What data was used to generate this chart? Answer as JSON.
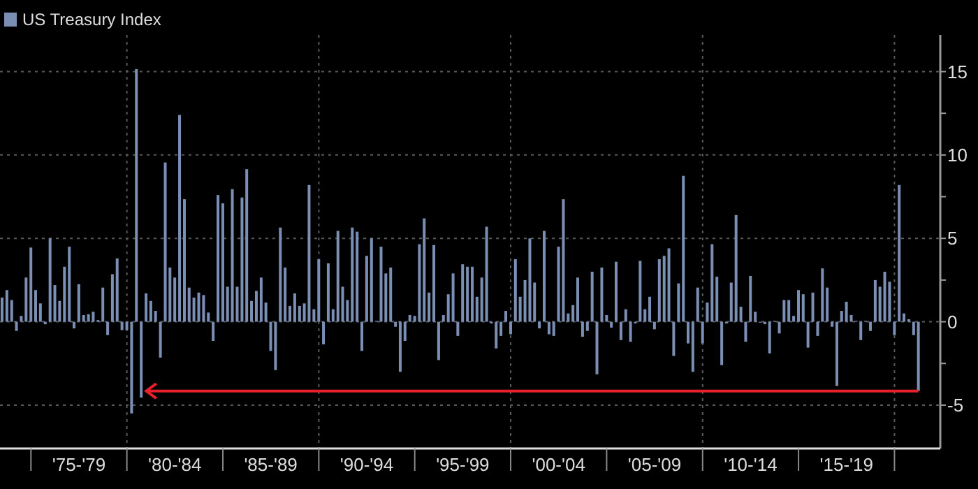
{
  "chart_data": {
    "type": "bar",
    "x": [
      "1973-06-30",
      "1973-09-30",
      "1973-12-31",
      "1974-03-31",
      "1974-06-30",
      "1974-09-30",
      "1974-12-31",
      "1975-03-31",
      "1975-06-30",
      "1975-09-30",
      "1975-12-31",
      "1976-03-31",
      "1976-06-30",
      "1976-09-30",
      "1976-12-31",
      "1977-03-31",
      "1977-06-30",
      "1977-09-30",
      "1977-12-31",
      "1978-03-31",
      "1978-06-30",
      "1978-09-30",
      "1978-12-31",
      "1979-03-31",
      "1979-06-30",
      "1979-09-30",
      "1979-12-31",
      "1980-03-31",
      "1980-06-30",
      "1980-09-30",
      "1980-12-31",
      "1981-03-31",
      "1981-06-30",
      "1981-09-30",
      "1981-12-31",
      "1982-03-31",
      "1982-06-30",
      "1982-09-30",
      "1982-12-31",
      "1983-03-31",
      "1983-06-30",
      "1983-09-30",
      "1983-12-31",
      "1984-03-31",
      "1984-06-30",
      "1984-09-30",
      "1984-12-31",
      "1985-03-31",
      "1985-06-30",
      "1985-09-30",
      "1985-12-31",
      "1986-03-31",
      "1986-06-30",
      "1986-09-30",
      "1986-12-31",
      "1987-03-31",
      "1987-06-30",
      "1987-09-30",
      "1987-12-31",
      "1988-03-31",
      "1988-06-30",
      "1988-09-30",
      "1988-12-31",
      "1989-03-31",
      "1989-06-30",
      "1989-09-30",
      "1989-12-31",
      "1990-03-31",
      "1990-06-30",
      "1990-09-30",
      "1990-12-31",
      "1991-03-31",
      "1991-06-30",
      "1991-09-30",
      "1991-12-31",
      "1992-03-31",
      "1992-06-30",
      "1992-09-30",
      "1992-12-31",
      "1993-03-31",
      "1993-06-30",
      "1993-09-30",
      "1993-12-31",
      "1994-03-31",
      "1994-06-30",
      "1994-09-30",
      "1994-12-31",
      "1995-03-31",
      "1995-06-30",
      "1995-09-30",
      "1995-12-31",
      "1996-03-31",
      "1996-06-30",
      "1996-09-30",
      "1996-12-31",
      "1997-03-31",
      "1997-06-30",
      "1997-09-30",
      "1997-12-31",
      "1998-03-31",
      "1998-06-30",
      "1998-09-30",
      "1998-12-31",
      "1999-03-31",
      "1999-06-30",
      "1999-09-30",
      "1999-12-31",
      "2000-03-31",
      "2000-06-30",
      "2000-09-30",
      "2000-12-31",
      "2001-03-31",
      "2001-06-30",
      "2001-09-30",
      "2001-12-31",
      "2002-03-31",
      "2002-06-30",
      "2002-09-30",
      "2002-12-31",
      "2003-03-31",
      "2003-06-30",
      "2003-09-30",
      "2003-12-31",
      "2004-03-31",
      "2004-06-30",
      "2004-09-30",
      "2004-12-31",
      "2005-03-31",
      "2005-06-30",
      "2005-09-30",
      "2005-12-31",
      "2006-03-31",
      "2006-06-30",
      "2006-09-30",
      "2006-12-31",
      "2007-03-31",
      "2007-06-30",
      "2007-09-30",
      "2007-12-31",
      "2008-03-31",
      "2008-06-30",
      "2008-09-30",
      "2008-12-31",
      "2009-03-31",
      "2009-06-30",
      "2009-09-30",
      "2009-12-31",
      "2010-03-31",
      "2010-06-30",
      "2010-09-30",
      "2010-12-31",
      "2011-03-31",
      "2011-06-30",
      "2011-09-30",
      "2011-12-31",
      "2012-03-31",
      "2012-06-30",
      "2012-09-30",
      "2012-12-31",
      "2013-03-31",
      "2013-06-30",
      "2013-09-30",
      "2013-12-31",
      "2014-03-31",
      "2014-06-30",
      "2014-09-30",
      "2014-12-31",
      "2015-03-31",
      "2015-06-30",
      "2015-09-30",
      "2015-12-31",
      "2016-03-31",
      "2016-06-30",
      "2016-09-30",
      "2016-12-31",
      "2017-03-31",
      "2017-06-30",
      "2017-09-30",
      "2017-12-31",
      "2018-03-31",
      "2018-06-30",
      "2018-09-30",
      "2018-12-31",
      "2019-03-31",
      "2019-06-30",
      "2019-09-30",
      "2019-12-31",
      "2020-03-31",
      "2020-06-30",
      "2020-09-30",
      "2020-12-31",
      "2021-03-31"
    ],
    "series": [
      {
        "name": "US Treasury Index",
        "color": "#7b8fb4",
        "values": [
          1.45,
          1.9,
          1.3,
          -0.55,
          0.35,
          2.65,
          4.45,
          1.9,
          1.1,
          -0.15,
          5.0,
          2.2,
          1.25,
          3.3,
          4.5,
          -0.4,
          2.25,
          0.4,
          0.45,
          0.6,
          0.1,
          2.05,
          -0.8,
          2.85,
          3.8,
          -0.5,
          -0.5,
          -5.5,
          15.15,
          -4.55,
          1.7,
          1.25,
          0.65,
          -2.15,
          9.55,
          3.25,
          2.65,
          12.4,
          7.35,
          2.05,
          1.45,
          1.75,
          1.6,
          0.55,
          -1.15,
          7.6,
          7.1,
          2.1,
          7.95,
          2.1,
          7.45,
          9.15,
          1.25,
          1.85,
          2.65,
          1.15,
          -1.75,
          -2.9,
          5.65,
          3.25,
          0.95,
          1.7,
          0.95,
          1.1,
          8.2,
          0.75,
          3.75,
          -1.35,
          3.5,
          0.75,
          5.45,
          2.1,
          1.3,
          5.65,
          5.4,
          -1.75,
          3.95,
          5.0,
          0.05,
          4.5,
          2.9,
          3.25,
          -0.3,
          -3.0,
          -1.15,
          0.4,
          0.35,
          4.65,
          6.2,
          1.75,
          4.6,
          -2.3,
          0.4,
          1.65,
          2.9,
          -0.85,
          3.45,
          3.3,
          3.3,
          1.5,
          2.65,
          5.7,
          -0.1,
          -1.6,
          -0.85,
          0.65,
          -0.75,
          3.75,
          1.5,
          2.5,
          5.0,
          2.35,
          -0.4,
          5.45,
          -0.75,
          -0.85,
          4.5,
          7.35,
          0.5,
          1.0,
          2.65,
          -0.9,
          -0.55,
          3.0,
          -3.15,
          3.25,
          0.4,
          -0.35,
          3.6,
          -1.1,
          0.75,
          -1.2,
          -0.1,
          3.65,
          0.75,
          1.5,
          -0.45,
          3.75,
          3.95,
          4.4,
          -2.05,
          2.3,
          8.75,
          -1.3,
          -3.0,
          2.05,
          -1.3,
          1.15,
          4.65,
          2.7,
          -2.6,
          -0.1,
          2.35,
          6.4,
          0.9,
          -1.2,
          2.75,
          0.6,
          -0.05,
          -0.15,
          -1.9,
          0.05,
          -0.7,
          1.3,
          1.3,
          0.35,
          1.9,
          1.65,
          -1.55,
          1.75,
          -0.85,
          3.2,
          2.05,
          -0.3,
          -3.85,
          0.65,
          1.2,
          0.4,
          0.05,
          -1.1,
          0.05,
          -0.55,
          2.5,
          2.1,
          3.0,
          2.4,
          -0.8,
          8.2,
          0.5,
          0.15,
          -0.8,
          -4.15
        ]
      }
    ],
    "xlim": [
      "1973-05-22",
      "2022-05-22"
    ],
    "xticks": [
      {
        "value": "1975-01-01",
        "label": null
      },
      {
        "value": "1977-07-02",
        "label": "'75-'79"
      },
      {
        "value": "1980-01-01",
        "label": null
      },
      {
        "value": "1982-07-02",
        "label": "'80-'84"
      },
      {
        "value": "1985-01-01",
        "label": null
      },
      {
        "value": "1987-07-02",
        "label": "'85-'89"
      },
      {
        "value": "1990-01-01",
        "label": null
      },
      {
        "value": "1992-07-02",
        "label": "'90-'94"
      },
      {
        "value": "1995-01-01",
        "label": null
      },
      {
        "value": "1997-07-02",
        "label": "'95-'99"
      },
      {
        "value": "2000-01-01",
        "label": null
      },
      {
        "value": "2002-07-02",
        "label": "'00-'04"
      },
      {
        "value": "2005-01-01",
        "label": null
      },
      {
        "value": "2007-07-02",
        "label": "'05-'09"
      },
      {
        "value": "2010-01-01",
        "label": null
      },
      {
        "value": "2012-07-02",
        "label": "'10-'14"
      },
      {
        "value": "2015-01-01",
        "label": null
      },
      {
        "value": "2017-07-02",
        "label": "'15-'19"
      },
      {
        "value": "2020-01-01",
        "label": null
      }
    ],
    "ylim": [
      -7.6,
      17.2
    ],
    "yticks": [
      -5,
      {
        "value": -2.5,
        "label": null
      },
      0,
      {
        "value": 2.5,
        "label": null
      },
      5,
      {
        "value": 7.5,
        "label": null
      },
      10,
      {
        "value": 12.5,
        "label": null
      },
      15
    ],
    "grid": "y",
    "legend": "top left",
    "ref_lines": [
      {
        "axis": "x",
        "value": "1980-01-01",
        "line_style": "dotted",
        "color": "#5a5a5a"
      },
      {
        "axis": "x",
        "value": "1990-01-01",
        "line_style": "dotted",
        "color": "#5a5a5a"
      },
      {
        "axis": "x",
        "value": "2000-01-01",
        "line_style": "dotted",
        "color": "#5a5a5a"
      },
      {
        "axis": "x",
        "value": "2010-01-01",
        "line_style": "dotted",
        "color": "#5a5a5a"
      },
      {
        "axis": "x",
        "value": "2020-01-01",
        "line_style": "dotted",
        "color": "#5a5a5a"
      }
    ]
  }
}
